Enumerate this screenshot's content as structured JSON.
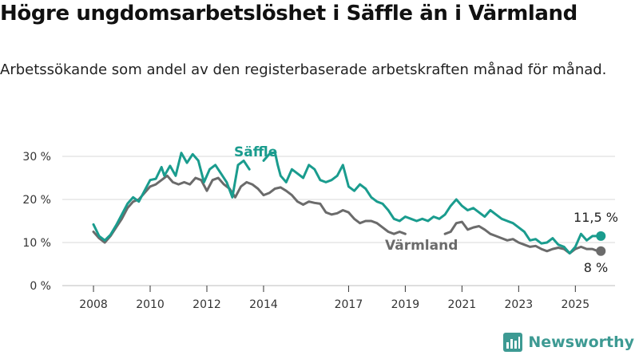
{
  "title": "Högre ungdomsarbetslöshet i Säffle än i Värmland",
  "subtitle": "Arbetssökande som andel av den registerbaserade arbetskraften månad för månad.",
  "brand": {
    "name": "Newsworthy",
    "icon": "bar-chart-logo-icon",
    "color": "#3d9a93"
  },
  "chart_data": {
    "type": "line",
    "ylim": [
      0,
      30
    ],
    "xlim": [
      2007.5,
      2025.6
    ],
    "yticks": [
      {
        "value": 0,
        "label": "0 %"
      },
      {
        "value": 10,
        "label": "10 %"
      },
      {
        "value": 20,
        "label": "20 %"
      },
      {
        "value": 30,
        "label": "30 %"
      }
    ],
    "xticks": [
      {
        "value": 2008,
        "label": "2008"
      },
      {
        "value": 2010,
        "label": "2010"
      },
      {
        "value": 2012,
        "label": "2012"
      },
      {
        "value": 2014,
        "label": "2014"
      },
      {
        "value": 2017,
        "label": "2017"
      },
      {
        "value": 2019,
        "label": "2019"
      },
      {
        "value": 2021,
        "label": "2021"
      },
      {
        "value": 2023,
        "label": "2023"
      },
      {
        "value": 2025,
        "label": "2025"
      }
    ],
    "grid": "horizontal",
    "series": [
      {
        "name": "Säffle",
        "color": "#1a9c8e",
        "end_label": "11,5 %",
        "segments": [
          [
            [
              2008.0,
              14.2
            ],
            [
              2008.2,
              11.5
            ],
            [
              2008.4,
              10.5
            ],
            [
              2008.6,
              11.8
            ],
            [
              2008.8,
              14.0
            ],
            [
              2009.0,
              16.5
            ],
            [
              2009.2,
              19.0
            ],
            [
              2009.4,
              20.5
            ],
            [
              2009.6,
              19.5
            ],
            [
              2009.8,
              22.0
            ],
            [
              2010.0,
              24.5
            ],
            [
              2010.2,
              24.8
            ],
            [
              2010.4,
              27.5
            ],
            [
              2010.5,
              25.5
            ],
            [
              2010.7,
              27.8
            ],
            [
              2010.9,
              25.5
            ],
            [
              2011.1,
              30.8
            ],
            [
              2011.3,
              28.5
            ],
            [
              2011.5,
              30.5
            ],
            [
              2011.7,
              29.0
            ],
            [
              2011.9,
              24.0
            ],
            [
              2012.1,
              27.0
            ],
            [
              2012.3,
              28.0
            ],
            [
              2012.5,
              26.0
            ],
            [
              2012.7,
              24.0
            ],
            [
              2012.9,
              20.5
            ],
            [
              2013.1,
              28.0
            ],
            [
              2013.3,
              29.0
            ],
            [
              2013.5,
              27.0
            ]
          ],
          [
            [
              2014.0,
              29.0
            ],
            [
              2014.2,
              30.5
            ],
            [
              2014.4,
              31.0
            ],
            [
              2014.5,
              28.0
            ],
            [
              2014.6,
              25.5
            ],
            [
              2014.8,
              24.0
            ],
            [
              2015.0,
              27.0
            ],
            [
              2015.2,
              26.0
            ],
            [
              2015.4,
              25.0
            ],
            [
              2015.6,
              28.0
            ],
            [
              2015.8,
              27.0
            ],
            [
              2016.0,
              24.5
            ],
            [
              2016.2,
              24.0
            ],
            [
              2016.4,
              24.5
            ],
            [
              2016.6,
              25.5
            ],
            [
              2016.8,
              28.0
            ],
            [
              2017.0,
              23.0
            ],
            [
              2017.2,
              22.0
            ],
            [
              2017.4,
              23.5
            ],
            [
              2017.6,
              22.5
            ],
            [
              2017.8,
              20.5
            ],
            [
              2018.0,
              19.5
            ],
            [
              2018.2,
              19.0
            ],
            [
              2018.4,
              17.5
            ],
            [
              2018.6,
              15.5
            ],
            [
              2018.8,
              15.0
            ],
            [
              2019.0,
              16.0
            ],
            [
              2019.2,
              15.5
            ],
            [
              2019.4,
              15.0
            ],
            [
              2019.6,
              15.5
            ],
            [
              2019.8,
              15.0
            ],
            [
              2020.0,
              16.0
            ],
            [
              2020.2,
              15.5
            ],
            [
              2020.4,
              16.5
            ],
            [
              2020.6,
              18.5
            ],
            [
              2020.8,
              20.0
            ],
            [
              2021.0,
              18.5
            ],
            [
              2021.2,
              17.5
            ],
            [
              2021.4,
              18.0
            ],
            [
              2021.6,
              17.0
            ],
            [
              2021.8,
              16.0
            ],
            [
              2022.0,
              17.5
            ],
            [
              2022.2,
              16.5
            ],
            [
              2022.4,
              15.5
            ],
            [
              2022.6,
              15.0
            ],
            [
              2022.8,
              14.5
            ],
            [
              2023.0,
              13.5
            ],
            [
              2023.2,
              12.5
            ],
            [
              2023.4,
              10.5
            ],
            [
              2023.6,
              10.8
            ],
            [
              2023.8,
              9.8
            ],
            [
              2024.0,
              10.0
            ],
            [
              2024.2,
              11.0
            ],
            [
              2024.4,
              9.5
            ],
            [
              2024.6,
              9.0
            ],
            [
              2024.8,
              7.5
            ],
            [
              2025.0,
              9.0
            ],
            [
              2025.2,
              12.0
            ],
            [
              2025.4,
              10.5
            ],
            [
              2025.6,
              11.5
            ],
            [
              2025.8,
              11.5
            ],
            [
              2025.9,
              11.5
            ]
          ]
        ]
      },
      {
        "name": "Värmland",
        "color": "#6b6b6b",
        "end_label": "8 %",
        "segments": [
          [
            [
              2008.0,
              12.5
            ],
            [
              2008.2,
              11.0
            ],
            [
              2008.4,
              10.0
            ],
            [
              2008.6,
              11.5
            ],
            [
              2008.8,
              13.5
            ],
            [
              2009.0,
              15.5
            ],
            [
              2009.2,
              18.0
            ],
            [
              2009.4,
              19.5
            ],
            [
              2009.6,
              20.0
            ],
            [
              2009.8,
              21.5
            ],
            [
              2010.0,
              23.0
            ],
            [
              2010.2,
              23.5
            ],
            [
              2010.4,
              24.5
            ],
            [
              2010.6,
              25.5
            ],
            [
              2010.8,
              24.0
            ],
            [
              2011.0,
              23.5
            ],
            [
              2011.2,
              24.0
            ],
            [
              2011.4,
              23.5
            ],
            [
              2011.6,
              25.0
            ],
            [
              2011.8,
              24.5
            ],
            [
              2012.0,
              22.0
            ],
            [
              2012.2,
              24.5
            ],
            [
              2012.4,
              25.0
            ],
            [
              2012.6,
              23.5
            ],
            [
              2012.8,
              22.5
            ],
            [
              2013.0,
              20.5
            ],
            [
              2013.2,
              23.0
            ],
            [
              2013.4,
              24.0
            ],
            [
              2013.6,
              23.5
            ],
            [
              2013.8,
              22.5
            ],
            [
              2014.0,
              21.0
            ],
            [
              2014.2,
              21.5
            ],
            [
              2014.4,
              22.5
            ],
            [
              2014.6,
              22.8
            ],
            [
              2014.8,
              22.0
            ],
            [
              2015.0,
              21.0
            ],
            [
              2015.2,
              19.5
            ],
            [
              2015.4,
              18.8
            ],
            [
              2015.6,
              19.5
            ],
            [
              2015.8,
              19.2
            ],
            [
              2016.0,
              19.0
            ],
            [
              2016.2,
              17.0
            ],
            [
              2016.4,
              16.5
            ],
            [
              2016.6,
              16.8
            ],
            [
              2016.8,
              17.5
            ],
            [
              2017.0,
              17.0
            ],
            [
              2017.2,
              15.5
            ],
            [
              2017.4,
              14.5
            ],
            [
              2017.6,
              15.0
            ],
            [
              2017.8,
              15.0
            ],
            [
              2018.0,
              14.5
            ],
            [
              2018.2,
              13.5
            ],
            [
              2018.4,
              12.5
            ],
            [
              2018.6,
              12.0
            ],
            [
              2018.8,
              12.5
            ],
            [
              2019.0,
              12.0
            ]
          ],
          [
            [
              2020.4,
              12.0
            ],
            [
              2020.6,
              12.5
            ],
            [
              2020.8,
              14.5
            ],
            [
              2021.0,
              14.8
            ],
            [
              2021.2,
              13.0
            ],
            [
              2021.4,
              13.5
            ],
            [
              2021.6,
              13.8
            ],
            [
              2021.8,
              13.0
            ],
            [
              2022.0,
              12.0
            ],
            [
              2022.2,
              11.5
            ],
            [
              2022.4,
              11.0
            ],
            [
              2022.6,
              10.5
            ],
            [
              2022.8,
              10.8
            ],
            [
              2023.0,
              10.0
            ],
            [
              2023.2,
              9.5
            ],
            [
              2023.4,
              9.0
            ],
            [
              2023.6,
              9.2
            ],
            [
              2023.8,
              8.5
            ],
            [
              2024.0,
              8.0
            ],
            [
              2024.2,
              8.5
            ],
            [
              2024.4,
              8.8
            ],
            [
              2024.6,
              8.5
            ],
            [
              2024.8,
              7.5
            ],
            [
              2025.0,
              8.5
            ],
            [
              2025.2,
              9.0
            ],
            [
              2025.4,
              8.5
            ],
            [
              2025.6,
              8.5
            ],
            [
              2025.8,
              8.0
            ],
            [
              2025.9,
              8.0
            ]
          ]
        ]
      }
    ]
  }
}
